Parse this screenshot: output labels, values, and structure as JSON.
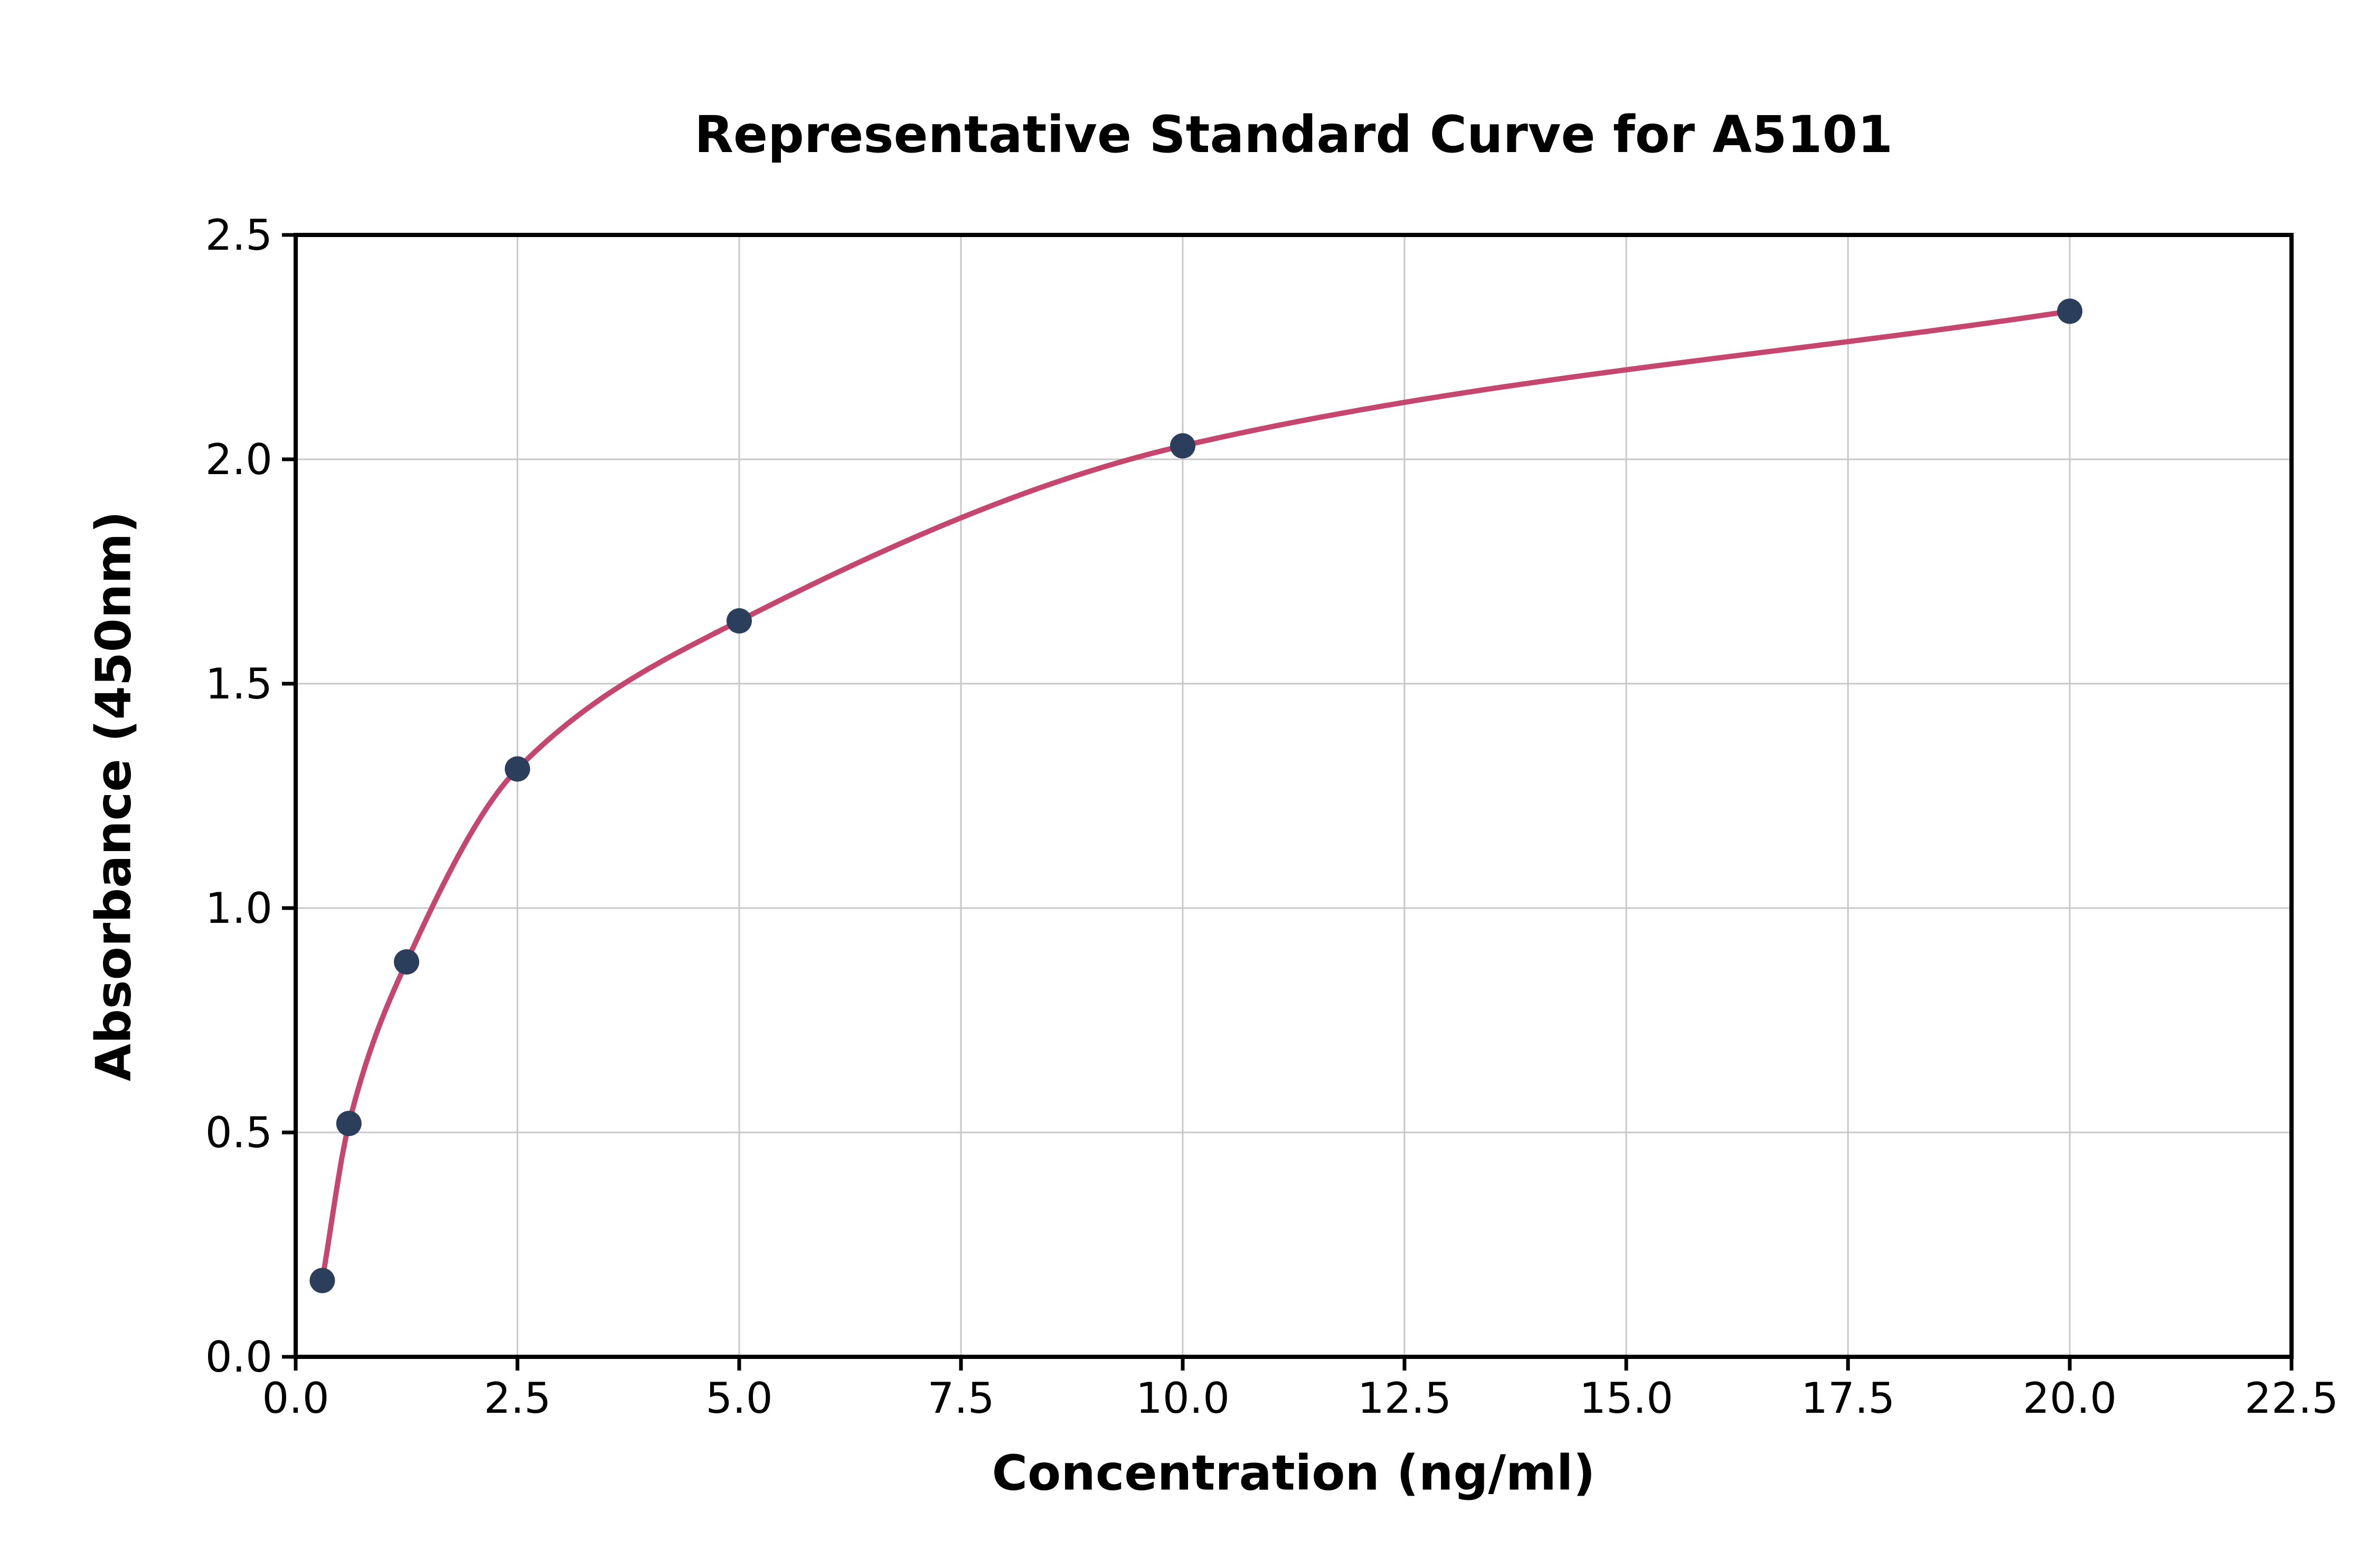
{
  "chart_data": {
    "type": "scatter",
    "title": "Representative Standard Curve for A5101",
    "xlabel": "Concentration (ng/ml)",
    "ylabel": "Absorbance (450nm)",
    "xlim": [
      0,
      22.5
    ],
    "ylim": [
      0,
      2.5
    ],
    "x_ticks": [
      0.0,
      2.5,
      5.0,
      7.5,
      10.0,
      12.5,
      15.0,
      17.5,
      20.0,
      22.5
    ],
    "x_tick_labels": [
      "0.0",
      "2.5",
      "5.0",
      "7.5",
      "10.0",
      "12.5",
      "15.0",
      "17.5",
      "20.0",
      "22.5"
    ],
    "y_ticks": [
      0.0,
      0.5,
      1.0,
      1.5,
      2.0,
      2.5
    ],
    "y_tick_labels": [
      "0.0",
      "0.5",
      "1.0",
      "1.5",
      "2.0",
      "2.5"
    ],
    "grid": true,
    "legend": "none",
    "series": [
      {
        "name": "standard-points",
        "type": "scatter",
        "x": [
          0.3,
          0.6,
          1.25,
          2.5,
          5.0,
          10.0,
          20.0
        ],
        "y": [
          0.17,
          0.52,
          0.88,
          1.31,
          1.64,
          2.03,
          2.33
        ],
        "color": "#2b3e5c"
      },
      {
        "name": "fitted-curve",
        "type": "line",
        "color": "#c5476f",
        "x_range": [
          0.3,
          20.0
        ]
      }
    ],
    "colors": {
      "curve": "#c5476f",
      "points": "#2b3e5c",
      "grid": "#c8c8c8",
      "spine": "#000000",
      "background": "#ffffff"
    }
  }
}
